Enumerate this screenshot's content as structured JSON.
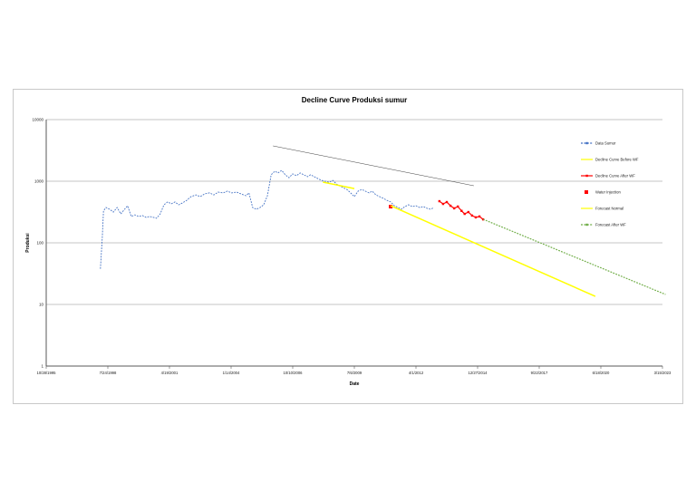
{
  "page": {
    "background": "#ffffff",
    "page_border": "#c8c8c8"
  },
  "chart_data": {
    "type": "line",
    "title": "Decline Curve Produksi sumur",
    "xlabel": "Date",
    "ylabel": "Produksi",
    "y_scale": "log",
    "ylim": [
      1,
      10000
    ],
    "y_ticks": [
      1,
      10,
      100,
      1000,
      10000
    ],
    "x_unit": "tick index, 0 = first date, 1 step = 1000 days",
    "x_tick_labels": [
      "10/28/1995",
      "7/24/1998",
      "4/19/2001",
      "1/14/2004",
      "10/10/2006",
      "7/6/2009",
      "4/1/2012",
      "12/27/2014",
      "9/22/2017",
      "6/18/2020",
      "3/15/2023"
    ],
    "grid": true,
    "legend_position": "right",
    "axis_color": "#595959",
    "grid_color": "#8c8c8c",
    "series": [
      {
        "name": "Data Sumur",
        "color": "#4472c4",
        "style": "dotted",
        "width": 0.9,
        "in_legend": true,
        "points": [
          [
            0.88,
            38
          ],
          [
            0.91,
            125
          ],
          [
            0.93,
            330
          ],
          [
            0.97,
            375
          ],
          [
            1.03,
            350
          ],
          [
            1.09,
            315
          ],
          [
            1.15,
            375
          ],
          [
            1.21,
            295
          ],
          [
            1.27,
            350
          ],
          [
            1.32,
            400
          ],
          [
            1.38,
            268
          ],
          [
            1.44,
            285
          ],
          [
            1.5,
            268
          ],
          [
            1.56,
            277
          ],
          [
            1.62,
            259
          ],
          [
            1.68,
            268
          ],
          [
            1.74,
            259
          ],
          [
            1.79,
            250
          ],
          [
            1.85,
            295
          ],
          [
            1.91,
            415
          ],
          [
            1.97,
            460
          ],
          [
            2.03,
            430
          ],
          [
            2.09,
            460
          ],
          [
            2.15,
            415
          ],
          [
            2.21,
            443
          ],
          [
            2.28,
            490
          ],
          [
            2.35,
            563
          ],
          [
            2.43,
            600
          ],
          [
            2.5,
            563
          ],
          [
            2.57,
            623
          ],
          [
            2.65,
            645
          ],
          [
            2.72,
            600
          ],
          [
            2.79,
            667
          ],
          [
            2.87,
            645
          ],
          [
            2.94,
            690
          ],
          [
            3.01,
            645
          ],
          [
            3.09,
            667
          ],
          [
            3.16,
            623
          ],
          [
            3.24,
            582
          ],
          [
            3.29,
            645
          ],
          [
            3.35,
            375
          ],
          [
            3.41,
            350
          ],
          [
            3.47,
            375
          ],
          [
            3.53,
            415
          ],
          [
            3.59,
            582
          ],
          [
            3.65,
            1270
          ],
          [
            3.71,
            1450
          ],
          [
            3.76,
            1360
          ],
          [
            3.82,
            1500
          ],
          [
            3.88,
            1270
          ],
          [
            3.94,
            1140
          ],
          [
            4.0,
            1315
          ],
          [
            4.06,
            1230
          ],
          [
            4.12,
            1360
          ],
          [
            4.18,
            1270
          ],
          [
            4.24,
            1185
          ],
          [
            4.29,
            1270
          ],
          [
            4.35,
            1185
          ],
          [
            4.41,
            1100
          ],
          [
            4.47,
            1030
          ],
          [
            4.53,
            995
          ],
          [
            4.59,
            960
          ],
          [
            4.65,
            1030
          ],
          [
            4.71,
            900
          ],
          [
            4.76,
            840
          ],
          [
            4.82,
            785
          ],
          [
            4.88,
            735
          ],
          [
            4.94,
            645
          ],
          [
            5.0,
            563
          ],
          [
            5.06,
            690
          ],
          [
            5.12,
            735
          ],
          [
            5.18,
            690
          ],
          [
            5.24,
            645
          ],
          [
            5.29,
            690
          ],
          [
            5.35,
            600
          ],
          [
            5.41,
            563
          ],
          [
            5.47,
            527
          ],
          [
            5.53,
            490
          ],
          [
            5.59,
            460
          ],
          [
            5.65,
            400
          ],
          [
            5.71,
            375
          ],
          [
            5.76,
            350
          ],
          [
            5.82,
            388
          ],
          [
            5.88,
            415
          ],
          [
            5.94,
            388
          ],
          [
            6.0,
            400
          ],
          [
            6.06,
            375
          ],
          [
            6.12,
            388
          ],
          [
            6.18,
            363
          ],
          [
            6.24,
            350
          ],
          [
            6.29,
            375
          ]
        ]
      },
      {
        "name": "Decline Curve Before WF",
        "color": "#ffff00",
        "style": "solid",
        "width": 1.5,
        "in_legend": true,
        "points": [
          [
            4.49,
            967
          ],
          [
            5.0,
            760
          ]
        ]
      },
      {
        "name": "Decline Curve After WF",
        "color": "#ff0000",
        "style": "marker-line",
        "width": 1.2,
        "in_legend": true,
        "points": [
          [
            6.38,
            474
          ],
          [
            6.44,
            428
          ],
          [
            6.5,
            459
          ],
          [
            6.56,
            400
          ],
          [
            6.62,
            363
          ],
          [
            6.68,
            388
          ],
          [
            6.74,
            330
          ],
          [
            6.79,
            295
          ],
          [
            6.85,
            316
          ],
          [
            6.91,
            277
          ],
          [
            6.97,
            259
          ],
          [
            7.03,
            268
          ],
          [
            7.09,
            240
          ]
        ]
      },
      {
        "name": "Water Injection",
        "color": "#ff0000",
        "style": "square-marker",
        "width": 1,
        "in_legend": true,
        "points": [
          [
            5.59,
            387
          ]
        ]
      },
      {
        "name": "Forecast Normal",
        "color": "#ffff00",
        "style": "solid",
        "width": 1.5,
        "in_legend": true,
        "points": [
          [
            5.59,
            400
          ],
          [
            8.91,
            13.5
          ]
        ]
      },
      {
        "name": "Forecast After WF",
        "color": "#70ad47",
        "style": "dotted",
        "width": 1.2,
        "in_legend": true,
        "points": [
          [
            7.09,
            241
          ],
          [
            10.05,
            14.5
          ]
        ]
      },
      {
        "name": "Trendline",
        "color": "#404040",
        "style": "solid",
        "width": 0.5,
        "in_legend": false,
        "points": [
          [
            3.68,
            3750
          ],
          [
            6.94,
            845
          ]
        ]
      }
    ]
  }
}
